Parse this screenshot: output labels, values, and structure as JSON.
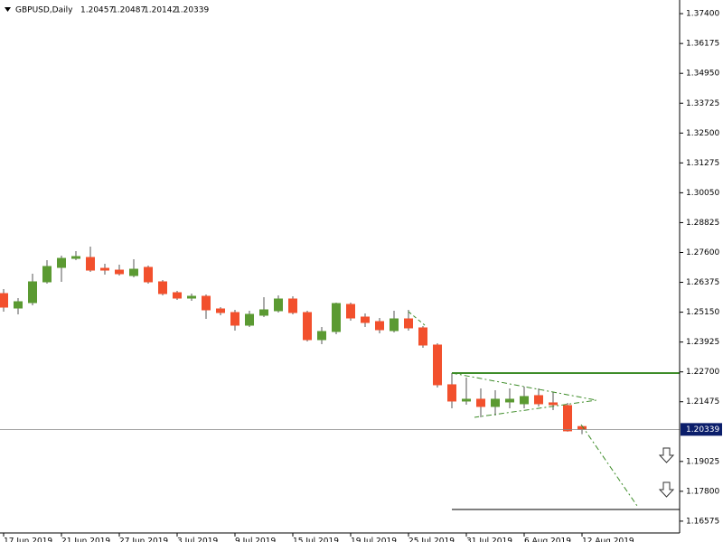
{
  "chart_data": {
    "type": "candlestick",
    "title": "GBPUSD,Daily",
    "categories": [
      "17 Jun 2019",
      null,
      null,
      null,
      "21 Jun 2019",
      null,
      null,
      null,
      "27 Jun 2019",
      null,
      null,
      null,
      "3 Jul 2019",
      null,
      null,
      null,
      "9 Jul 2019",
      null,
      null,
      null,
      "15 Jul 2019",
      null,
      null,
      null,
      "19 Jul 2019",
      null,
      null,
      null,
      "25 Jul 2019",
      null,
      null,
      null,
      "31 Jul 2019",
      null,
      null,
      null,
      "6 Aug 2019",
      null,
      null,
      null,
      "12 Aug 2019"
    ],
    "open": [
      1.25913,
      1.2532,
      1.25542,
      1.26395,
      1.26988,
      1.27358,
      1.27395,
      1.2695,
      1.26876,
      1.26654,
      1.26988,
      1.26395,
      1.2595,
      1.25728,
      1.25802,
      1.25283,
      1.25135,
      1.24616,
      1.25024,
      1.25209,
      1.25691,
      1.25135,
      1.24023,
      1.24357,
      1.25468,
      1.2495,
      1.24764,
      1.24394,
      1.24875,
      1.24505,
      1.23801,
      1.22171,
      1.21503,
      1.21578,
      1.21281,
      1.21466,
      1.21392,
      1.21726,
      1.21429,
      1.21318,
      1.20457
    ],
    "high": [
      1.26098,
      1.25728,
      1.26728,
      1.27284,
      1.27469,
      1.27655,
      1.2784,
      1.27136,
      1.27099,
      1.27321,
      1.27062,
      1.26469,
      1.26024,
      1.25913,
      1.25876,
      1.25357,
      1.25246,
      1.25209,
      1.25765,
      1.25839,
      1.25802,
      1.25209,
      1.24542,
      1.25542,
      1.25542,
      1.25098,
      1.24912,
      1.25209,
      1.25246,
      1.24579,
      1.23875,
      1.22652,
      1.22467,
      1.22022,
      1.21948,
      1.22022,
      1.22096,
      1.22022,
      1.21874,
      1.21429,
      1.20487
    ],
    "low": [
      1.25172,
      1.25061,
      1.25431,
      1.26321,
      1.26395,
      1.27284,
      1.26802,
      1.26691,
      1.26654,
      1.2658,
      1.26321,
      1.25839,
      1.25654,
      1.25617,
      1.24875,
      1.25024,
      1.24394,
      1.24542,
      1.2495,
      1.25135,
      1.25061,
      1.23949,
      1.23838,
      1.24245,
      1.24801,
      1.24542,
      1.24283,
      1.2432,
      1.24394,
      1.2369,
      1.22059,
      1.21207,
      1.21355,
      1.20836,
      1.20911,
      1.21207,
      1.21207,
      1.21281,
      1.21133,
      1.20244,
      1.20142
    ],
    "close": [
      1.25357,
      1.25579,
      1.26395,
      1.27025,
      1.27358,
      1.27432,
      1.26876,
      1.26876,
      1.26728,
      1.26913,
      1.26395,
      1.25913,
      1.25728,
      1.25802,
      1.25246,
      1.25135,
      1.24616,
      1.25061,
      1.25246,
      1.25691,
      1.25135,
      1.24023,
      1.24357,
      1.25505,
      1.24912,
      1.24727,
      1.24431,
      1.24875,
      1.24505,
      1.23801,
      1.22171,
      1.21503,
      1.21578,
      1.21281,
      1.21578,
      1.21578,
      1.21689,
      1.21392,
      1.21355,
      1.20281,
      1.20339
    ],
    "bull_color": "#5b9a32",
    "bear_color": "#f2502d",
    "ylim": [
      1.1609,
      1.3796
    ],
    "yticks": [
      {
        "value": 1.374,
        "label": "1.37400"
      },
      1.36175,
      {
        "value": 1.3495,
        "label": "1.34950"
      },
      1.33725,
      {
        "value": 1.325,
        "label": "1.32500"
      },
      1.31275,
      {
        "value": 1.3005,
        "label": "1.30050"
      },
      1.28825,
      {
        "value": 1.276,
        "label": "1.27600"
      },
      1.26375,
      {
        "value": 1.2515,
        "label": "1.25150"
      },
      1.23925,
      {
        "value": 1.227,
        "label": "1.22700"
      },
      1.21475,
      1.19025,
      {
        "value": 1.178,
        "label": "1.17800"
      },
      1.16575
    ],
    "grid": false
  }
}
